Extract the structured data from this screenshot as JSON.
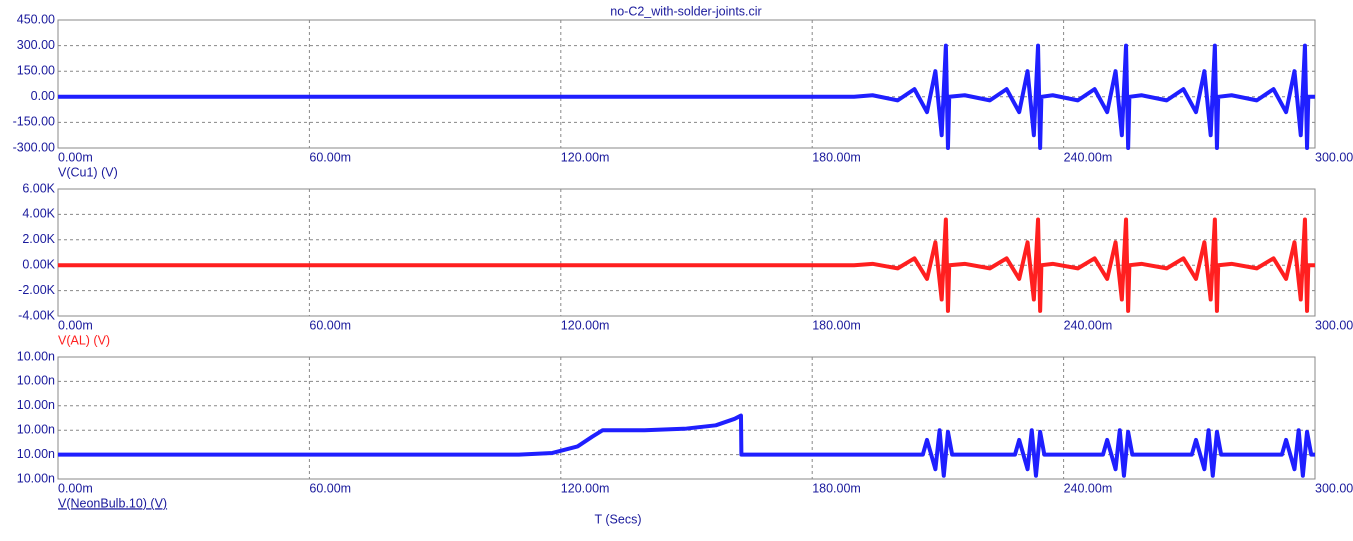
{
  "chart_data": [
    {
      "type": "line",
      "title": "no-C2_with-solder-joints.cir",
      "x": [
        0,
        0.19,
        0.1944,
        0.2004,
        0.2044,
        0.2074,
        0.2094,
        0.2109,
        0.2119,
        0.2124,
        0.2127,
        0.2164,
        0.2224,
        0.2264,
        0.2294,
        0.2314,
        0.2329,
        0.2339,
        0.2344,
        0.2347,
        0.2374,
        0.2434,
        0.2474,
        0.2504,
        0.2524,
        0.2539,
        0.2549,
        0.2554,
        0.2557,
        0.2586,
        0.2646,
        0.2686,
        0.2716,
        0.2736,
        0.2751,
        0.2761,
        0.2766,
        0.2769,
        0.2801,
        0.2861,
        0.2901,
        0.2931,
        0.2951,
        0.2966,
        0.2976,
        0.2981,
        0.2984,
        0.3
      ],
      "series": [
        {
          "name": "V(Cu1) (V)",
          "color": "#1f1fff",
          "values": [
            0,
            0,
            9,
            -21,
            45,
            -90,
            150,
            -225,
            300,
            -300,
            0,
            9,
            -21,
            45,
            -90,
            150,
            -225,
            300,
            -300,
            0,
            9,
            -21,
            45,
            -90,
            150,
            -225,
            300,
            -300,
            0,
            9,
            -21,
            45,
            -90,
            150,
            -225,
            300,
            -300,
            0,
            9,
            -21,
            45,
            -90,
            150,
            -225,
            300,
            -300,
            0,
            0
          ]
        }
      ],
      "xlim": [
        0,
        0.3
      ],
      "xticks": [
        {
          "value": 0,
          "label": "0.00m"
        },
        {
          "value": 0.06,
          "label": "60.00m"
        },
        {
          "value": 0.12,
          "label": "120.00m"
        },
        {
          "value": 0.18,
          "label": "180.00m"
        },
        {
          "value": 0.24,
          "label": "240.00m"
        },
        {
          "value": 0.3,
          "label": "300.00m"
        }
      ],
      "ylim": [
        -300,
        450
      ],
      "yticks": [
        {
          "value": -300,
          "label": "-300.00"
        },
        {
          "value": -150,
          "label": "-150.00"
        },
        {
          "value": 0,
          "label": "0.00"
        },
        {
          "value": 150,
          "label": "150.00"
        },
        {
          "value": 300,
          "label": "300.00"
        },
        {
          "value": 450,
          "label": "450.00"
        }
      ],
      "grid": true
    },
    {
      "type": "line",
      "x": [
        0,
        0.19,
        0.1944,
        0.2004,
        0.2044,
        0.2074,
        0.2094,
        0.2109,
        0.2119,
        0.2124,
        0.2127,
        0.2164,
        0.2224,
        0.2264,
        0.2294,
        0.2314,
        0.2329,
        0.2339,
        0.2344,
        0.2347,
        0.2374,
        0.2434,
        0.2474,
        0.2504,
        0.2524,
        0.2539,
        0.2549,
        0.2554,
        0.2557,
        0.2586,
        0.2646,
        0.2686,
        0.2716,
        0.2736,
        0.2751,
        0.2761,
        0.2766,
        0.2769,
        0.2801,
        0.2861,
        0.2901,
        0.2931,
        0.2951,
        0.2966,
        0.2976,
        0.2981,
        0.2984,
        0.3
      ],
      "series": [
        {
          "name": "V(AL) (V)",
          "color": "#ff1f1f",
          "values": [
            0,
            0,
            108,
            -252,
            540,
            -1080,
            1800,
            -2700,
            3600,
            -3600,
            0,
            108,
            -252,
            540,
            -1080,
            1800,
            -2700,
            3600,
            -3600,
            0,
            108,
            -252,
            540,
            -1080,
            1800,
            -2700,
            3600,
            -3600,
            0,
            108,
            -252,
            540,
            -1080,
            1800,
            -2700,
            3600,
            -3600,
            0,
            108,
            -252,
            540,
            -1080,
            1800,
            -2700,
            3600,
            -3600,
            0,
            0
          ]
        }
      ],
      "xlim": [
        0,
        0.3
      ],
      "xticks": [
        {
          "value": 0,
          "label": "0.00m"
        },
        {
          "value": 0.06,
          "label": "60.00m"
        },
        {
          "value": 0.12,
          "label": "120.00m"
        },
        {
          "value": 0.18,
          "label": "180.00m"
        },
        {
          "value": 0.24,
          "label": "240.00m"
        },
        {
          "value": 0.3,
          "label": "300.00m"
        }
      ],
      "ylim": [
        -4000,
        6000
      ],
      "yticks": [
        {
          "value": -4000,
          "label": "-4.00K"
        },
        {
          "value": -2000,
          "label": "-2.00K"
        },
        {
          "value": 0,
          "label": "0.00K"
        },
        {
          "value": 2000,
          "label": "2.00K"
        },
        {
          "value": 4000,
          "label": "4.00K"
        },
        {
          "value": 6000,
          "label": "6.00K"
        }
      ],
      "grid": true
    },
    {
      "type": "line",
      "xlabel": "T (Secs)",
      "x": [
        0,
        0.11,
        0.118,
        0.124,
        0.1275,
        0.13,
        0.14,
        0.15,
        0.157,
        0.1615,
        0.163,
        0.1631,
        0.2064,
        0.2074,
        0.2094,
        0.2104,
        0.2114,
        0.2124,
        0.2134,
        0.2284,
        0.2294,
        0.2314,
        0.2324,
        0.2334,
        0.2344,
        0.2354,
        0.2494,
        0.2504,
        0.2524,
        0.2534,
        0.2544,
        0.2554,
        0.2564,
        0.2706,
        0.2716,
        0.2736,
        0.2746,
        0.2756,
        0.2766,
        0.2776,
        0.2921,
        0.2931,
        0.2951,
        0.2961,
        0.2971,
        0.2981,
        0.2991,
        0.3
      ],
      "series": [
        {
          "name": "V(NeonBulb.10) (V)",
          "color": "#1f1fff",
          "values": [
            9.9975e-09,
            9.9975e-09,
            9.9976e-09,
            9.998e-09,
            9.9986e-09,
            9.999e-09,
            9.999e-09,
            9.9991e-09,
            9.9993e-09,
            9.9997e-09,
            9.9999e-09,
            9.9975e-09,
            9.9975e-09,
            9.9984e-09,
            9.9966e-09,
            9.999e-09,
            9.9962e-09,
            9.9989e-09,
            9.9975e-09,
            9.9975e-09,
            9.9984e-09,
            9.9966e-09,
            9.999e-09,
            9.9962e-09,
            9.9989e-09,
            9.9975e-09,
            9.9975e-09,
            9.9984e-09,
            9.9966e-09,
            9.999e-09,
            9.9962e-09,
            9.9989e-09,
            9.9975e-09,
            9.9975e-09,
            9.9984e-09,
            9.9966e-09,
            9.999e-09,
            9.9962e-09,
            9.9989e-09,
            9.9975e-09,
            9.9975e-09,
            9.9984e-09,
            9.9966e-09,
            9.999e-09,
            9.9962e-09,
            9.9989e-09,
            9.9975e-09,
            9.9975e-09
          ]
        }
      ],
      "xlim": [
        0,
        0.3
      ],
      "xticks": [
        {
          "value": 0,
          "label": "0.00m"
        },
        {
          "value": 0.06,
          "label": "60.00m"
        },
        {
          "value": 0.12,
          "label": "120.00m"
        },
        {
          "value": 0.18,
          "label": "180.00m"
        },
        {
          "value": 0.24,
          "label": "240.00m"
        },
        {
          "value": 0.3,
          "label": "300.00m"
        }
      ],
      "ylim": [
        9.996e-09,
        1.00035e-08
      ],
      "yticks": [
        {
          "value": 9.996e-09,
          "label": "10.00n"
        },
        {
          "value": 9.9975e-09,
          "label": "10.00n"
        },
        {
          "value": 9.999e-09,
          "label": "10.00n"
        },
        {
          "value": 1.00005e-08,
          "label": "10.00n"
        },
        {
          "value": 1.0002e-08,
          "label": "10.00n"
        },
        {
          "value": 1.00035e-08,
          "label": "10.00n"
        }
      ],
      "grid": true
    }
  ]
}
